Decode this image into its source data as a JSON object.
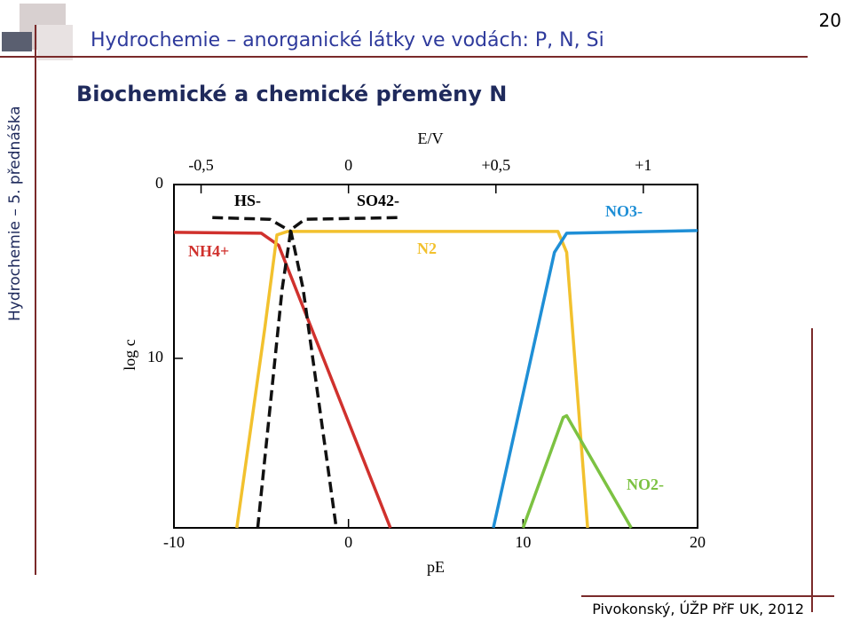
{
  "slide": {
    "side_title": "Hydrochemie – 5. přednáška",
    "header": "Hydrochemie – anorganické látky ve vodách: P, N, Si",
    "page_number": "20",
    "subtitle": "Biochemické a chemické přeměny N",
    "footer": "Pivokonský, ÚŽP PřF UK, 2012"
  },
  "chart_data": {
    "type": "line",
    "x_label": "pE",
    "x2_label": "E/V",
    "y_label": "log c",
    "xlim": [
      -10,
      20
    ],
    "xticks": [
      -10,
      0,
      10,
      20
    ],
    "x2lim": [
      -0.592,
      1.184
    ],
    "x2ticks": [
      {
        "value": -0.5,
        "label": "-0,5"
      },
      0,
      {
        "value": 0.5,
        "label": "+0,5"
      },
      {
        "value": 1,
        "label": "+1"
      }
    ],
    "ylim": [
      0,
      19.75
    ],
    "y_inverted": true,
    "yticks": [
      0,
      10
    ],
    "series": [
      {
        "name": "NH4+",
        "color": "#d0312d",
        "x": [
          -10,
          -5,
          -4,
          2.4
        ],
        "values": [
          2.75,
          2.8,
          3.5,
          19.75
        ]
      },
      {
        "name": "N2",
        "color": "#f2c12e",
        "x": [
          -6.4,
          -4.8,
          -4.1,
          -3.5,
          12.0,
          12.5,
          13.7
        ],
        "values": [
          19.75,
          8.3,
          2.9,
          2.7,
          2.7,
          3.9,
          19.75
        ]
      },
      {
        "name": "NO3-",
        "color": "#1f8fd6",
        "x": [
          8.3,
          11.8,
          12.5,
          20
        ],
        "values": [
          19.75,
          3.9,
          2.8,
          2.65
        ]
      },
      {
        "name": "NO2-",
        "color": "#7cc242",
        "x": [
          10.0,
          12.3,
          12.5,
          16.2
        ],
        "values": [
          19.75,
          13.4,
          13.3,
          19.75
        ]
      },
      {
        "name": "HS-",
        "color": "#111111",
        "dashed": true,
        "x": [
          -7.8,
          -4.5,
          -3.3,
          -2.6,
          -0.7
        ],
        "values": [
          1.9,
          2.0,
          2.7,
          6,
          19.75
        ]
      },
      {
        "name": "SO42-",
        "color": "#111111",
        "dashed": true,
        "x": [
          -5.2,
          -3.8,
          -3.3,
          -2.5,
          3.0
        ],
        "values": [
          19.75,
          6,
          2.6,
          2.0,
          1.9
        ]
      }
    ]
  }
}
